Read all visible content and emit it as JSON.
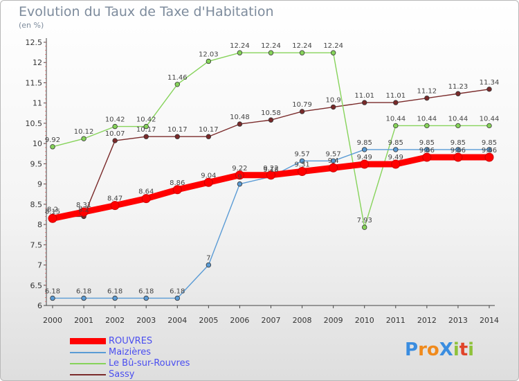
{
  "header": {
    "title": "Evolution du Taux de Taxe d'Habitation",
    "subtitle": "(en %)"
  },
  "logo": {
    "text": "ProXiti",
    "letters": [
      "P",
      "r",
      "o",
      "X",
      "i",
      "t",
      "i"
    ],
    "colors": [
      "#3a8de0",
      "#f08a1c",
      "#f08a1c",
      "#3a8de0",
      "#8fc23a",
      "#e0442a",
      "#8fc23a"
    ]
  },
  "chart_data": {
    "type": "line",
    "title": "Evolution du Taux de Taxe d'Habitation",
    "subtitle": "(en %)",
    "xlabel": "",
    "ylabel": "",
    "x": [
      "2000",
      "2001",
      "2002",
      "2003",
      "2004",
      "2005",
      "2006",
      "2007",
      "2008",
      "2009",
      "2010",
      "2011",
      "2012",
      "2013",
      "2014"
    ],
    "ylim": [
      6,
      12.5
    ],
    "yticks": [
      "6",
      "6.5",
      "7",
      "7.5",
      "8",
      "8.5",
      "9",
      "9.5",
      "10",
      "10.5",
      "11",
      "11.5",
      "12",
      "12.5"
    ],
    "grid": false,
    "legend_position": "bottom-left",
    "series": [
      {
        "name": "ROUVRES",
        "color": "#ff0000",
        "values": [
          8.15,
          8.31,
          8.47,
          8.64,
          8.86,
          9.04,
          9.22,
          9.22,
          9.31,
          9.4,
          9.49,
          9.49,
          9.66,
          9.66,
          9.66
        ],
        "labels": [
          "8.15",
          "8.31",
          "8.47",
          "8.64",
          "8.86",
          "9.04",
          "9.22",
          "9.22",
          "9.31",
          "9.4",
          "9.49",
          "9.49",
          "9.66",
          "9.66",
          "9.66"
        ]
      },
      {
        "name": "Maizières",
        "color": "#5a9bd5",
        "values": [
          6.18,
          6.18,
          6.18,
          6.18,
          6.18,
          7,
          9,
          9.18,
          9.57,
          9.57,
          9.85,
          9.85,
          9.85,
          9.85,
          9.85
        ],
        "labels": [
          "6.18",
          "6.18",
          "6.18",
          "6.18",
          "6.18",
          "7",
          "9",
          "9.18",
          "9.57",
          "9.57",
          "9.85",
          "9.85",
          "9.85",
          "9.85",
          "9.85"
        ]
      },
      {
        "name": "Le Bû-sur-Rouvres",
        "color": "#86d35a",
        "values": [
          9.92,
          10.12,
          10.42,
          10.42,
          11.46,
          12.03,
          12.24,
          12.24,
          12.24,
          12.24,
          7.93,
          10.44,
          10.44,
          10.44,
          10.44
        ],
        "labels": [
          "9.92",
          "10.12",
          "10.42",
          "10.42",
          "11.46",
          "12.03",
          "12.24",
          "12.24",
          "12.24",
          "12.24",
          "7.93",
          "10.44",
          "10.44",
          "10.44",
          "10.44"
        ]
      },
      {
        "name": "Sassy",
        "color": "#7a2a2a",
        "values": [
          8.2,
          8.2,
          10.07,
          10.17,
          10.17,
          10.17,
          10.48,
          10.58,
          10.79,
          10.9,
          11.01,
          11.01,
          11.12,
          11.23,
          11.34
        ],
        "labels": [
          "8.2",
          "8.2",
          "10.07",
          "10.17",
          "10.17",
          "10.17",
          "10.48",
          "10.58",
          "10.79",
          "10.9",
          "11.01",
          "11.01",
          "11.12",
          "11.23",
          "11.34"
        ]
      }
    ]
  }
}
